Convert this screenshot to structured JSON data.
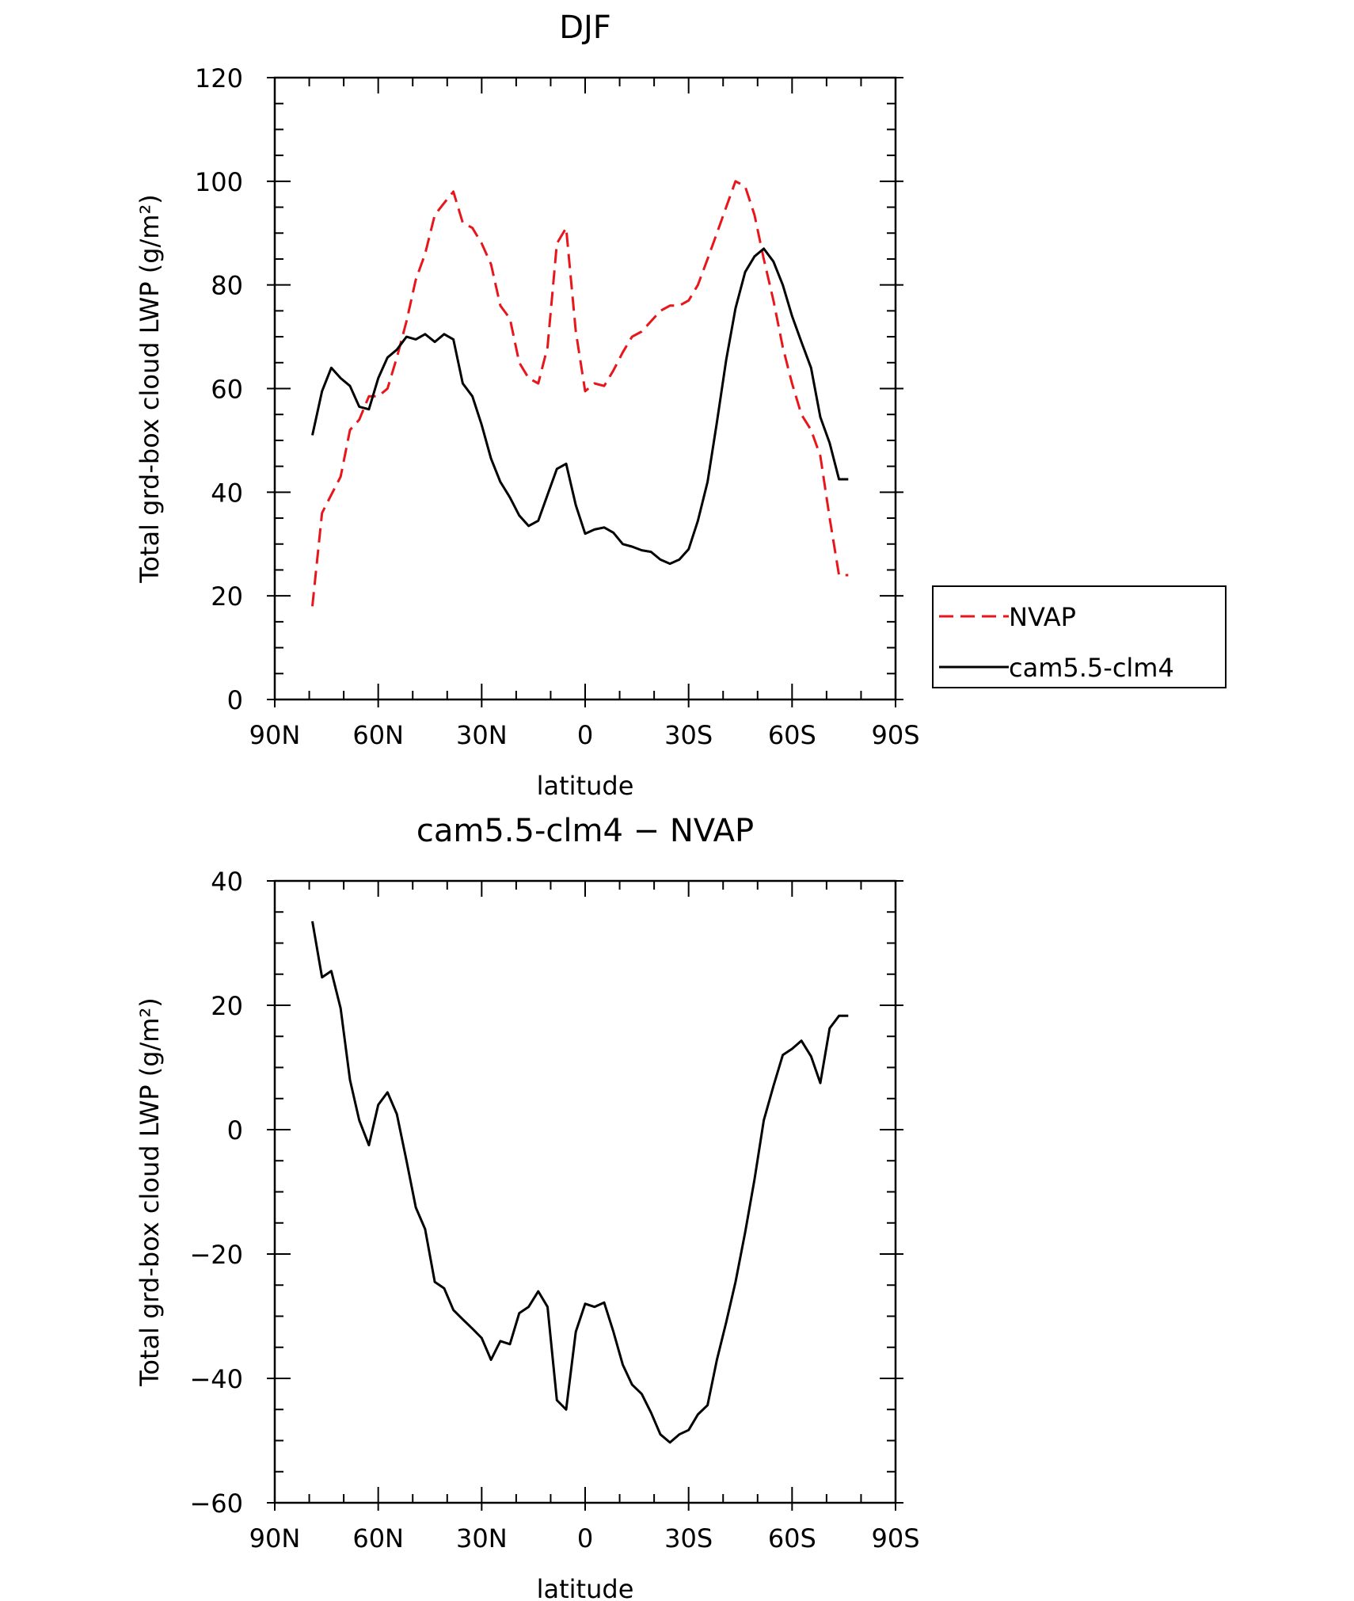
{
  "chart_data": [
    {
      "type": "line",
      "title": "DJF",
      "xlabel": "latitude",
      "ylabel": "Total grd-box cloud LWP (g/m²)",
      "xlim": [
        90,
        -90
      ],
      "ylim": [
        0,
        120
      ],
      "xticks": [
        90,
        60,
        30,
        0,
        -30,
        -60,
        -90
      ],
      "xtick_labels": [
        "90N",
        "60N",
        "30N",
        "0",
        "30S",
        "60S",
        "90S"
      ],
      "yticks": [
        0,
        20,
        40,
        60,
        80,
        100,
        120
      ],
      "ytick_labels": [
        "0",
        "20",
        "40",
        "60",
        "80",
        "100",
        "120"
      ],
      "grid": false,
      "legend": "right",
      "series": [
        {
          "name": "NVAP",
          "color": "#e8161b",
          "style": "dashed",
          "x": [
            79.1,
            76.3,
            73.6,
            70.9,
            68.2,
            65.5,
            62.7,
            60.0,
            57.3,
            54.6,
            51.8,
            49.1,
            46.4,
            43.6,
            40.9,
            38.2,
            35.5,
            32.7,
            30.0,
            27.3,
            24.6,
            21.8,
            19.1,
            16.4,
            13.6,
            10.9,
            8.2,
            5.5,
            2.7,
            0.0,
            -2.7,
            -5.5,
            -8.2,
            -10.9,
            -13.6,
            -16.4,
            -19.1,
            -21.8,
            -24.6,
            -27.3,
            -30.0,
            -32.7,
            -35.5,
            -38.2,
            -40.9,
            -43.6,
            -46.4,
            -49.1,
            -51.8,
            -54.6,
            -57.3,
            -60.0,
            -62.7,
            -65.5,
            -68.2,
            -70.9,
            -73.6,
            -76.3
          ],
          "y": [
            18,
            36,
            39.5,
            43,
            52,
            54,
            58.5,
            58.5,
            60,
            66,
            73,
            81,
            86,
            93.5,
            95.8,
            98,
            92,
            91,
            88,
            84,
            76,
            73.5,
            65,
            62,
            61,
            68,
            88,
            91,
            71,
            59.5,
            61,
            60.5,
            63.5,
            67,
            70,
            71,
            73,
            75,
            76,
            76,
            77,
            80,
            85,
            90,
            95,
            100,
            99,
            93.5,
            85,
            77,
            68,
            61,
            55,
            52,
            47,
            35,
            24,
            24
          ]
        },
        {
          "name": "cam5.5-clm4",
          "color": "#000000",
          "style": "solid",
          "x": [
            79.1,
            76.3,
            73.6,
            70.9,
            68.2,
            65.5,
            62.7,
            60.0,
            57.3,
            54.6,
            51.8,
            49.1,
            46.4,
            43.6,
            40.9,
            38.2,
            35.5,
            32.7,
            30.0,
            27.3,
            24.6,
            21.8,
            19.1,
            16.4,
            13.6,
            10.9,
            8.2,
            5.5,
            2.7,
            0.0,
            -2.7,
            -5.5,
            -8.2,
            -10.9,
            -13.6,
            -16.4,
            -19.1,
            -21.8,
            -24.6,
            -27.3,
            -30.0,
            -32.7,
            -35.5,
            -38.2,
            -40.9,
            -43.6,
            -46.4,
            -49.1,
            -51.8,
            -54.6,
            -57.3,
            -60.0,
            -62.7,
            -65.5,
            -68.2,
            -70.9,
            -73.6,
            -76.3
          ],
          "y": [
            51,
            59.5,
            64,
            62,
            60.5,
            56.5,
            56,
            62,
            66,
            67.5,
            70,
            69.5,
            70.5,
            69,
            70.5,
            69.5,
            61,
            58.5,
            53,
            46.5,
            42,
            39,
            35.5,
            33.5,
            34.5,
            39.5,
            44.5,
            45.5,
            37.5,
            32,
            32.8,
            33.2,
            32.2,
            30,
            29.5,
            28.8,
            28.5,
            27,
            26.2,
            27,
            29,
            34.5,
            42,
            53.5,
            65.5,
            75.5,
            82.5,
            85.5,
            87,
            84.5,
            80,
            74,
            69,
            64,
            54.5,
            49.5,
            42.5,
            42.5
          ]
        }
      ]
    },
    {
      "type": "line",
      "title": "cam5.5-clm4 − NVAP",
      "xlabel": "latitude",
      "ylabel": "Total grd-box cloud LWP (g/m²)",
      "xlim": [
        90,
        -90
      ],
      "ylim": [
        -60,
        40
      ],
      "xticks": [
        90,
        60,
        30,
        0,
        -30,
        -60,
        -90
      ],
      "xtick_labels": [
        "90N",
        "60N",
        "30N",
        "0",
        "30S",
        "60S",
        "90S"
      ],
      "yticks": [
        -60,
        -40,
        -20,
        0,
        20,
        40
      ],
      "ytick_labels": [
        "−60",
        "−40",
        "−20",
        "0",
        "20",
        "40"
      ],
      "grid": false,
      "series": [
        {
          "color": "#000000",
          "style": "solid",
          "x": [
            79.1,
            76.3,
            73.6,
            70.9,
            68.2,
            65.5,
            62.7,
            60.0,
            57.3,
            54.6,
            51.8,
            49.1,
            46.4,
            43.6,
            40.9,
            38.2,
            35.5,
            32.7,
            30.0,
            27.3,
            24.6,
            21.8,
            19.1,
            16.4,
            13.6,
            10.9,
            8.2,
            5.5,
            2.7,
            0.0,
            -2.7,
            -5.5,
            -8.2,
            -10.9,
            -13.6,
            -16.4,
            -19.1,
            -21.8,
            -24.6,
            -27.3,
            -30.0,
            -32.7,
            -35.5,
            -38.2,
            -40.9,
            -43.6,
            -46.4,
            -49.1,
            -51.8,
            -54.6,
            -57.3,
            -60.0,
            -62.7,
            -65.5,
            -68.2,
            -70.9,
            -73.6,
            -76.3
          ],
          "y": [
            33.5,
            24.5,
            25.5,
            19.5,
            8,
            1.5,
            -2.5,
            4,
            6,
            2.5,
            -5,
            -12.5,
            -16,
            -24.5,
            -25.5,
            -29,
            -30.5,
            -32,
            -33.5,
            -37,
            -34,
            -34.5,
            -29.5,
            -28.5,
            -26,
            -28.5,
            -43.5,
            -45,
            -32.5,
            -28,
            -28.5,
            -27.8,
            -32.5,
            -37.8,
            -41,
            -42.5,
            -45.5,
            -49,
            -50.3,
            -49,
            -48.3,
            -45.8,
            -44.3,
            -37,
            -31,
            -24.5,
            -16.5,
            -8,
            1.5,
            7,
            12,
            13,
            14.3,
            11.8,
            7.5,
            16.3,
            18.3,
            18.3
          ]
        }
      ]
    }
  ]
}
